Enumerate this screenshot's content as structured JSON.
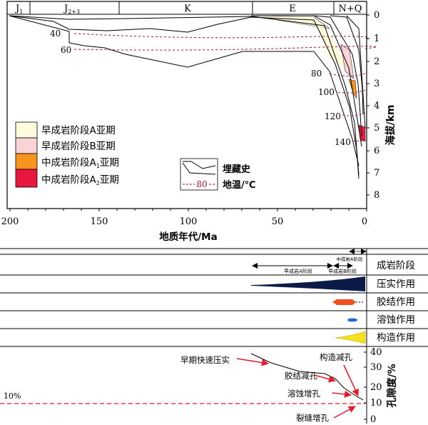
{
  "periods": [
    "J",
    "J",
    "K",
    "E",
    "N+Q"
  ],
  "period_subscripts": [
    "1",
    "2+3",
    "",
    "",
    ""
  ],
  "depth_ticks": [
    "0",
    "1",
    "2",
    "3",
    "4",
    "5",
    "6",
    "7",
    "8"
  ],
  "depth_axis_label": "海拔/km",
  "age_ticks": [
    "200",
    "150",
    "100",
    "50",
    "0"
  ],
  "age_axis_label": "地质年代/Ma",
  "isotherm_labels": [
    "40",
    "60",
    "80",
    "100",
    "120",
    "140"
  ],
  "stage_legend": [
    {
      "label": "早成岩阶段A亚期",
      "color": "#fefbdc"
    },
    {
      "label": "早成岩阶段B亚期",
      "color": "#fbd3d6"
    },
    {
      "label": "中成岩阶段A",
      "sub": "1",
      "suffix": "亚期",
      "color": "#f7941d"
    },
    {
      "label": "中成岩阶段A",
      "sub": "2",
      "suffix": "亚期",
      "color": "#e8173f"
    }
  ],
  "line_legend": {
    "burial_label": "埋藏史",
    "temp_value": "80",
    "temp_label": "地温/℃"
  },
  "processes": {
    "stage_row_label": "成岩阶段",
    "stage_arrows": [
      "早成岩A阶段",
      "早成岩B阶段",
      "中成岩A阶段"
    ],
    "rows": [
      "压实作用",
      "胶结作用",
      "溶蚀作用",
      "构造作用"
    ]
  },
  "porosity": {
    "axis_label": "孔隙度/%",
    "ticks": [
      "40",
      "30",
      "20",
      "10",
      "0"
    ],
    "reference": "10%",
    "annotations": [
      "早期快速压实",
      "胶结减孔",
      "溶蚀增孔",
      "构造减孔",
      "裂缝增孔"
    ]
  },
  "colors": {
    "compaction": "#0b1a46",
    "cementation": "#f04e1f",
    "dissolution": "#1f6ad8",
    "tectonic": "#f5e21c",
    "isotherm": "#a3123a",
    "arrow_red": "#e8192c"
  }
}
